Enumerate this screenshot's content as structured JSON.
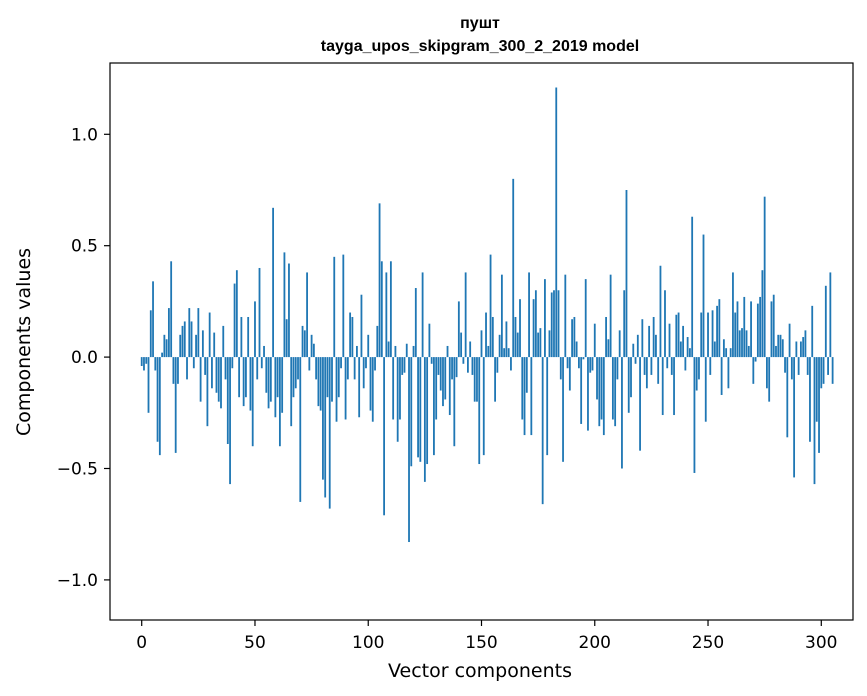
{
  "chart_data": {
    "type": "bar",
    "title": "пушт",
    "subtitle": "tayga_upos_skipgram_300_2_2019 model",
    "xlabel": "Vector components",
    "ylabel": "Components values",
    "xlim": [
      -14,
      314
    ],
    "ylim": [
      -1.18,
      1.32
    ],
    "xticks": [
      0,
      50,
      100,
      150,
      200,
      250,
      300
    ],
    "yticks": [
      -1.0,
      -0.5,
      0.0,
      0.5,
      1.0
    ],
    "xtick_labels": [
      "0",
      "50",
      "100",
      "150",
      "200",
      "250",
      "300"
    ],
    "ytick_labels": [
      "−1.0",
      "−0.5",
      "0.0",
      "0.5",
      "1.0"
    ],
    "bar_color": "#1f77b4",
    "grid": false,
    "values": [
      -0.04,
      -0.06,
      -0.03,
      -0.25,
      0.21,
      0.34,
      -0.06,
      -0.38,
      -0.44,
      0.02,
      0.1,
      0.08,
      0.22,
      0.43,
      -0.12,
      -0.43,
      -0.12,
      0.1,
      0.14,
      0.16,
      -0.1,
      0.22,
      0.16,
      -0.05,
      0.1,
      0.22,
      -0.2,
      0.12,
      -0.08,
      -0.31,
      0.2,
      -0.14,
      0.11,
      -0.16,
      -0.2,
      -0.23,
      0.14,
      -0.1,
      -0.39,
      -0.57,
      -0.05,
      0.33,
      0.39,
      -0.18,
      0.18,
      -0.22,
      -0.18,
      0.18,
      -0.24,
      -0.4,
      0.25,
      -0.1,
      0.4,
      -0.05,
      0.05,
      -0.16,
      -0.23,
      -0.2,
      0.67,
      -0.27,
      -0.18,
      -0.4,
      -0.25,
      0.47,
      0.17,
      0.42,
      -0.31,
      -0.18,
      -0.14,
      -0.1,
      -0.65,
      0.14,
      0.12,
      0.38,
      -0.06,
      0.1,
      0.06,
      -0.1,
      -0.22,
      -0.24,
      -0.55,
      -0.63,
      -0.18,
      -0.68,
      -0.2,
      0.45,
      -0.29,
      -0.18,
      -0.05,
      0.46,
      -0.28,
      -0.1,
      0.2,
      0.18,
      -0.1,
      0.05,
      -0.27,
      0.28,
      -0.14,
      -0.05,
      0.1,
      -0.24,
      -0.29,
      -0.06,
      0.14,
      0.69,
      0.43,
      -0.71,
      0.38,
      0.07,
      0.43,
      -0.28,
      0.05,
      -0.38,
      -0.28,
      -0.08,
      -0.07,
      0.06,
      -0.83,
      -0.49,
      0.05,
      0.31,
      -0.45,
      -0.47,
      0.38,
      -0.56,
      -0.48,
      0.15,
      -0.03,
      -0.44,
      -0.28,
      -0.08,
      -0.15,
      -0.22,
      -0.19,
      0.05,
      -0.26,
      -0.1,
      -0.4,
      -0.09,
      0.25,
      0.11,
      -0.03,
      0.38,
      -0.07,
      0.07,
      -0.08,
      -0.2,
      -0.2,
      -0.48,
      0.12,
      -0.44,
      0.2,
      0.05,
      0.46,
      0.18,
      -0.2,
      -0.07,
      0.1,
      0.37,
      0.04,
      0.16,
      0.04,
      -0.06,
      0.8,
      0.18,
      0.11,
      0.26,
      -0.28,
      -0.35,
      -0.16,
      0.38,
      -0.35,
      0.26,
      0.3,
      0.11,
      0.13,
      -0.66,
      0.35,
      -0.44,
      0.12,
      0.29,
      0.3,
      1.21,
      0.3,
      -0.1,
      -0.47,
      0.37,
      -0.05,
      -0.15,
      0.17,
      0.18,
      0.07,
      -0.05,
      -0.3,
      -0.01,
      0.35,
      -0.33,
      -0.07,
      -0.06,
      0.15,
      -0.19,
      -0.31,
      -0.28,
      -0.35,
      0.18,
      0.08,
      0.37,
      -0.28,
      -0.31,
      -0.1,
      0.12,
      -0.5,
      0.3,
      0.75,
      -0.25,
      -0.18,
      0.06,
      -0.03,
      0.1,
      -0.42,
      0.17,
      -0.08,
      -0.14,
      0.14,
      -0.08,
      0.18,
      0.1,
      -0.12,
      0.41,
      -0.26,
      0.3,
      -0.05,
      0.15,
      -0.08,
      -0.26,
      0.19,
      0.2,
      0.07,
      0.14,
      -0.06,
      0.09,
      0.04,
      0.63,
      -0.52,
      -0.15,
      -0.1,
      0.2,
      0.55,
      -0.29,
      0.2,
      -0.08,
      0.21,
      0.07,
      0.23,
      0.26,
      -0.17,
      0.08,
      0.04,
      -0.14,
      0.04,
      0.38,
      0.2,
      0.25,
      0.12,
      0.13,
      0.27,
      0.12,
      0.05,
      0.25,
      -0.12,
      -0.02,
      0.24,
      0.27,
      0.39,
      0.72,
      -0.14,
      -0.2,
      0.25,
      0.28,
      0.05,
      0.1,
      0.1,
      0.08,
      -0.07,
      -0.36,
      0.15,
      -0.1,
      -0.54,
      0.07,
      -0.08,
      0.07,
      0.09,
      0.12,
      -0.08,
      -0.38,
      0.23,
      -0.57,
      -0.29,
      -0.43,
      -0.14,
      -0.12,
      0.32,
      -0.08,
      0.38,
      -0.12
    ]
  }
}
